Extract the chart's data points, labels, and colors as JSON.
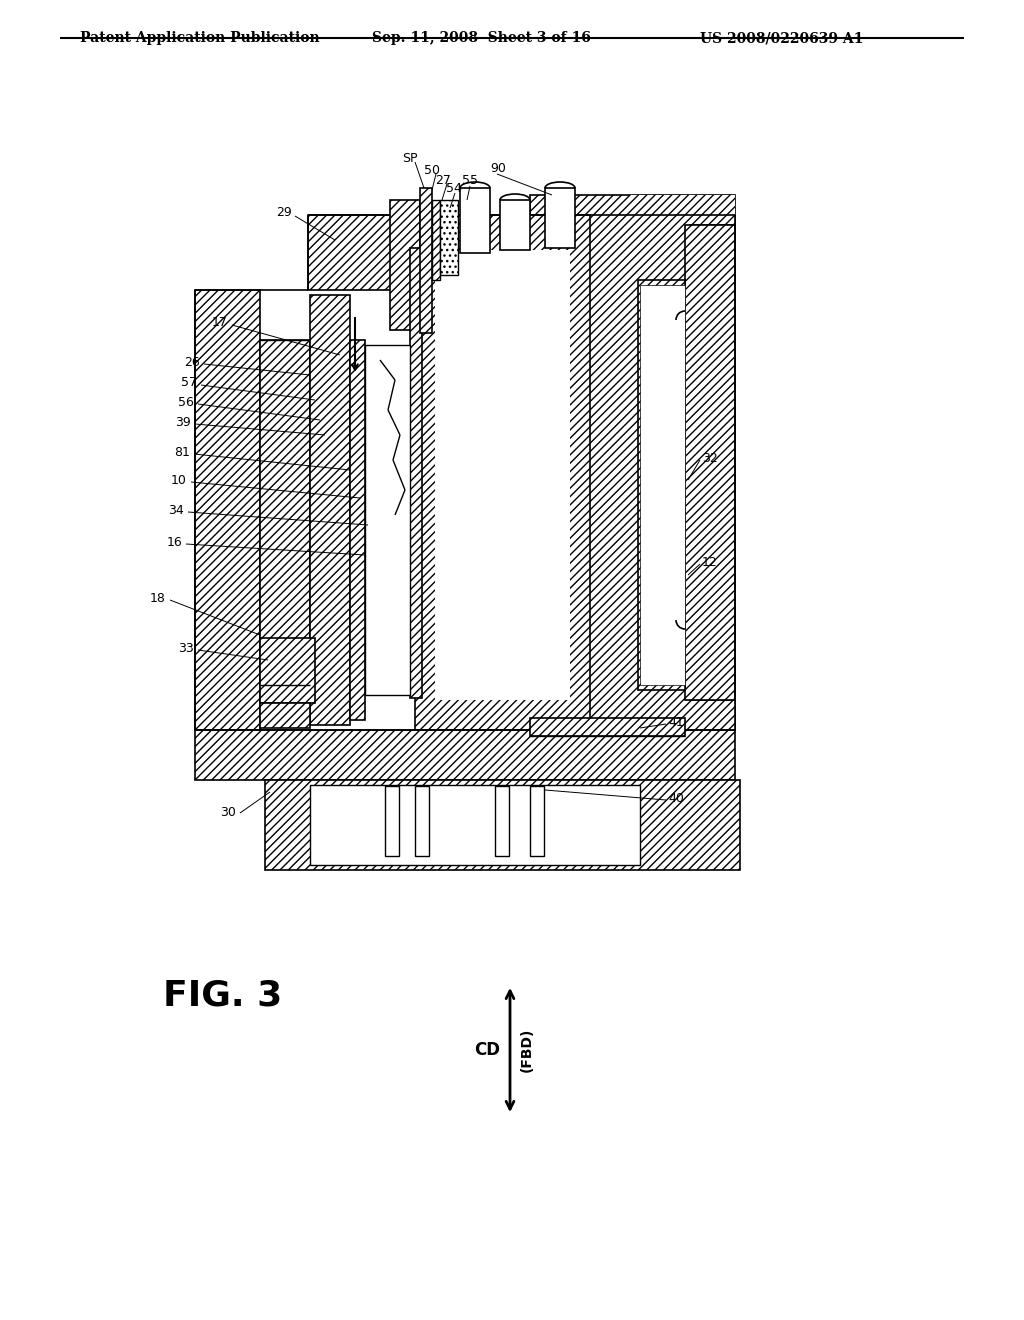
{
  "header_left": "Patent Application Publication",
  "header_mid": "Sep. 11, 2008  Sheet 3 of 16",
  "header_right": "US 2008/0220639 A1",
  "fig_label": "FIG. 3",
  "background_color": "#ffffff",
  "line_color": "#000000",
  "labels_left": [
    {
      "text": "SP",
      "ix": 408,
      "iy": 162
    },
    {
      "text": "50",
      "ix": 420,
      "iy": 172
    },
    {
      "text": "29",
      "ix": 305,
      "iy": 212
    },
    {
      "text": "27",
      "ix": 432,
      "iy": 181
    },
    {
      "text": "54",
      "ix": 442,
      "iy": 190
    },
    {
      "text": "55",
      "ix": 462,
      "iy": 182
    },
    {
      "text": "90",
      "ix": 488,
      "iy": 170
    },
    {
      "text": "17",
      "ix": 220,
      "iy": 320
    },
    {
      "text": "26",
      "ix": 195,
      "iy": 360
    },
    {
      "text": "57",
      "ix": 192,
      "iy": 380
    },
    {
      "text": "56",
      "ix": 190,
      "iy": 400
    },
    {
      "text": "39",
      "ix": 188,
      "iy": 420
    },
    {
      "text": "81",
      "ix": 188,
      "iy": 450
    },
    {
      "text": "10",
      "ix": 186,
      "iy": 478
    },
    {
      "text": "34",
      "ix": 184,
      "iy": 508
    },
    {
      "text": "16",
      "ix": 182,
      "iy": 540
    },
    {
      "text": "18",
      "ix": 168,
      "iy": 596
    },
    {
      "text": "33",
      "ix": 196,
      "iy": 645
    },
    {
      "text": "32",
      "ix": 700,
      "iy": 456
    },
    {
      "text": "12",
      "ix": 700,
      "iy": 560
    },
    {
      "text": "41",
      "ix": 665,
      "iy": 720
    },
    {
      "text": "40",
      "ix": 665,
      "iy": 795
    },
    {
      "text": "30",
      "ix": 238,
      "iy": 810
    }
  ]
}
